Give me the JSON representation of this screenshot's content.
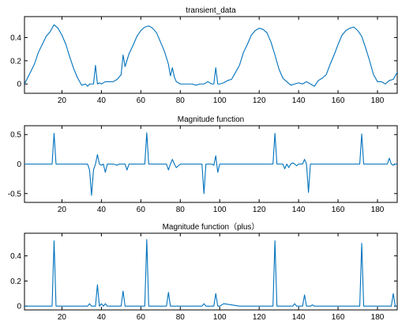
{
  "colors": {
    "line": "#0072BD",
    "axis": "#000000",
    "background": "#ffffff"
  },
  "chart_data": [
    {
      "type": "line",
      "title": "transient_data",
      "xlabel": "",
      "ylabel": "",
      "xlim": [
        1,
        190
      ],
      "ylim": [
        -0.08,
        0.58
      ],
      "xticks": [
        20,
        40,
        60,
        80,
        100,
        120,
        140,
        160,
        180
      ],
      "yticks": [
        0,
        0.2,
        0.4
      ],
      "ytick_labels": [
        "0",
        "0.2",
        "0.4"
      ],
      "grid": false,
      "series": [
        {
          "x": [
            1,
            4,
            6,
            8,
            10,
            12,
            14,
            16,
            18,
            20,
            22,
            24,
            26,
            28,
            30,
            32,
            33,
            34,
            35,
            36,
            37,
            38,
            39,
            40,
            42,
            44,
            46,
            48,
            50,
            51,
            52,
            54,
            56,
            58,
            60,
            62,
            64,
            66,
            68,
            70,
            72,
            74,
            75,
            76,
            77,
            78,
            79,
            80,
            82,
            84,
            86,
            88,
            90,
            92,
            94,
            96,
            97,
            98,
            99,
            100,
            102,
            104,
            106,
            108,
            110,
            112,
            114,
            116,
            118,
            120,
            122,
            124,
            126,
            128,
            130,
            132,
            134,
            136,
            138,
            140,
            142,
            144,
            146,
            148,
            150,
            152,
            154,
            156,
            158,
            160,
            162,
            164,
            166,
            168,
            170,
            172,
            174,
            176,
            178,
            180,
            182,
            184,
            186,
            188,
            190
          ],
          "y": [
            0.0,
            0.1,
            0.17,
            0.27,
            0.34,
            0.41,
            0.45,
            0.51,
            0.48,
            0.42,
            0.34,
            0.23,
            0.13,
            0.05,
            -0.01,
            0.0,
            -0.02,
            0.0,
            0.0,
            0.0,
            0.16,
            0.0,
            0.01,
            0.0,
            0.02,
            0.02,
            0.02,
            0.04,
            0.08,
            0.25,
            0.15,
            0.26,
            0.33,
            0.41,
            0.46,
            0.49,
            0.5,
            0.48,
            0.44,
            0.36,
            0.28,
            0.17,
            0.07,
            0.14,
            0.06,
            0.02,
            0.01,
            0.0,
            0.0,
            0.0,
            0.0,
            -0.01,
            0.0,
            0.0,
            0.02,
            0.0,
            0.0,
            0.14,
            0.0,
            0.0,
            0.01,
            0.03,
            0.04,
            0.1,
            0.16,
            0.27,
            0.34,
            0.42,
            0.46,
            0.48,
            0.47,
            0.44,
            0.36,
            0.25,
            0.13,
            0.05,
            0.02,
            -0.01,
            0.0,
            0.01,
            0.0,
            0.02,
            0.0,
            -0.02,
            0.03,
            0.05,
            0.08,
            0.17,
            0.25,
            0.34,
            0.42,
            0.46,
            0.48,
            0.49,
            0.46,
            0.41,
            0.31,
            0.2,
            0.08,
            0.02,
            0.02,
            0.0,
            0.03,
            0.04,
            0.1
          ]
        }
      ]
    },
    {
      "type": "line",
      "title": "Magnitude function",
      "xlabel": "",
      "ylabel": "",
      "xlim": [
        1,
        190
      ],
      "ylim": [
        -0.65,
        0.65
      ],
      "xticks": [
        20,
        40,
        60,
        80,
        100,
        120,
        140,
        160,
        180
      ],
      "yticks": [
        -0.5,
        0,
        0.5
      ],
      "ytick_labels": [
        "-0.5",
        "0",
        "0.5"
      ],
      "grid": false,
      "series": [
        {
          "x": [
            1,
            10,
            14,
            15,
            16,
            17,
            18,
            20,
            30,
            33,
            34,
            35,
            36,
            37,
            38,
            39,
            40,
            41,
            42,
            43,
            44,
            46,
            48,
            49,
            50,
            51,
            52,
            53,
            54,
            56,
            58,
            60,
            61,
            62,
            63,
            64,
            65,
            66,
            70,
            72,
            73,
            74,
            75,
            76,
            77,
            78,
            80,
            90,
            91,
            92,
            93,
            94,
            96,
            97,
            98,
            99,
            100,
            102,
            110,
            126,
            127,
            128,
            129,
            130,
            132,
            133,
            134,
            135,
            136,
            137,
            138,
            139,
            140,
            142,
            143,
            144,
            145,
            146,
            147,
            148,
            150,
            152,
            154,
            156,
            158,
            160,
            170,
            171,
            172,
            173,
            174,
            176,
            178,
            180,
            182,
            184,
            185,
            186,
            187,
            188,
            189,
            190
          ],
          "y": [
            0.0,
            0.0,
            0.0,
            0.0,
            0.52,
            0.0,
            0.0,
            0.0,
            0.0,
            0.0,
            -0.1,
            -0.53,
            -0.1,
            0.0,
            0.16,
            0.0,
            -0.02,
            0.0,
            -0.14,
            0.0,
            0.0,
            0.0,
            -0.02,
            0.0,
            0.0,
            0.0,
            0.0,
            -0.1,
            0.0,
            0.0,
            0.0,
            0.0,
            0.0,
            0.0,
            0.53,
            0.0,
            0.0,
            0.0,
            0.0,
            0.0,
            0.0,
            -0.1,
            0.0,
            0.08,
            0.0,
            -0.06,
            0.0,
            0.0,
            0.0,
            -0.5,
            0.0,
            0.0,
            0.0,
            -0.02,
            0.14,
            -0.14,
            0.0,
            0.0,
            0.0,
            0.0,
            0.0,
            0.52,
            0.0,
            0.0,
            0.0,
            -0.08,
            0.0,
            -0.06,
            0.0,
            0.02,
            0.0,
            -0.03,
            0.0,
            0.0,
            0.08,
            0.0,
            -0.48,
            0.0,
            0.0,
            0.0,
            0.0,
            0.0,
            0.0,
            0.0,
            0.0,
            0.0,
            0.0,
            0.0,
            0.51,
            0.0,
            0.0,
            0.0,
            0.0,
            0.0,
            0.0,
            0.0,
            0.0,
            0.1,
            0.0,
            -0.02,
            0.0,
            0.0
          ]
        }
      ]
    },
    {
      "type": "line",
      "title": "Magnitude function（plus）",
      "xlabel": "",
      "ylabel": "",
      "xlim": [
        1,
        190
      ],
      "ylim": [
        -0.03,
        0.58
      ],
      "xticks": [
        20,
        40,
        60,
        80,
        100,
        120,
        140,
        160,
        180
      ],
      "yticks": [
        0,
        0.2,
        0.4
      ],
      "ytick_labels": [
        "0",
        "0.2",
        "0.4"
      ],
      "grid": false,
      "series": [
        {
          "x": [
            1,
            10,
            14,
            15,
            16,
            17,
            18,
            20,
            30,
            33,
            34,
            35,
            36,
            37,
            38,
            39,
            40,
            41,
            42,
            43,
            44,
            46,
            48,
            49,
            50,
            51,
            52,
            53,
            54,
            56,
            58,
            60,
            61,
            62,
            63,
            64,
            65,
            66,
            70,
            72,
            73,
            74,
            75,
            76,
            77,
            78,
            80,
            90,
            91,
            92,
            93,
            94,
            96,
            97,
            98,
            99,
            100,
            102,
            110,
            126,
            127,
            128,
            129,
            130,
            132,
            133,
            134,
            135,
            136,
            137,
            138,
            139,
            140,
            142,
            143,
            144,
            145,
            146,
            147,
            148,
            150,
            152,
            154,
            156,
            158,
            160,
            170,
            171,
            172,
            173,
            174,
            176,
            178,
            180,
            182,
            184,
            185,
            186,
            187,
            188,
            189,
            190
          ],
          "y": [
            0.0,
            0.0,
            0.0,
            0.0,
            0.52,
            0.0,
            0.0,
            0.0,
            0.0,
            0.0,
            0.02,
            0.0,
            0.0,
            0.0,
            0.17,
            0.0,
            0.02,
            0.0,
            0.02,
            0.0,
            0.0,
            0.0,
            0.0,
            0.0,
            0.0,
            0.12,
            0.0,
            0.0,
            0.0,
            0.0,
            0.0,
            0.0,
            0.0,
            0.0,
            0.53,
            0.0,
            0.0,
            0.0,
            0.0,
            0.0,
            0.0,
            0.11,
            0.0,
            0.0,
            0.0,
            0.0,
            0.0,
            0.0,
            0.0,
            0.02,
            0.0,
            0.0,
            0.0,
            0.0,
            0.1,
            0.0,
            0.0,
            0.02,
            0.0,
            0.0,
            0.0,
            0.52,
            0.0,
            0.0,
            0.0,
            0.0,
            0.0,
            0.0,
            0.0,
            0.0,
            0.02,
            0.0,
            0.0,
            0.0,
            0.09,
            0.0,
            0.0,
            0.0,
            0.01,
            0.0,
            0.0,
            0.0,
            0.0,
            0.0,
            0.0,
            0.0,
            0.0,
            0.0,
            0.5,
            0.0,
            0.0,
            0.0,
            0.0,
            0.0,
            0.0,
            0.0,
            0.0,
            0.0,
            0.0,
            0.1,
            0.0,
            0.0
          ]
        }
      ]
    }
  ]
}
